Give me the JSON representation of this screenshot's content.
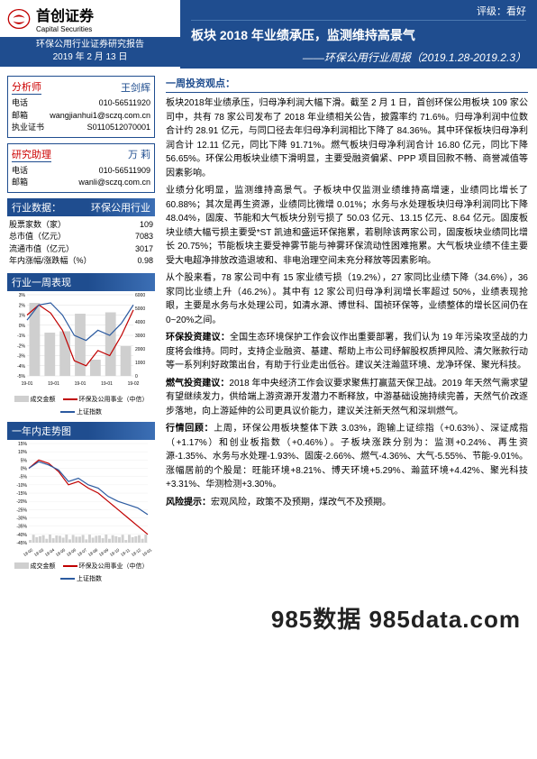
{
  "header": {
    "logo_cn": "首创证券",
    "logo_en": "Capital Securities",
    "report_type": "环保公用行业证券研究报告",
    "date": "2019 年 2 月 13 日",
    "rating_label": "评级：",
    "rating_value": "看好",
    "title": "板块 2018 年业绩承压，监测维持高景气",
    "subtitle": "——环保公用行业周报（2019.1.28-2019.2.3）"
  },
  "colors": {
    "header_bg": "#1f4d8f",
    "red": "#c00000",
    "blue": "#1f4d8f",
    "line_blue": "#2b5aa0",
    "line_red": "#c00000",
    "bar_gray": "#cfcfcf"
  },
  "sidebar": {
    "analyst": {
      "title": "分析师",
      "name": "王剑辉",
      "rows": [
        {
          "k": "电话",
          "v": "010-56511920"
        },
        {
          "k": "邮箱",
          "v": "wangjianhui1@sczq.com.cn"
        },
        {
          "k": "执业证书",
          "v": "S0110512070001"
        }
      ]
    },
    "assistant": {
      "title": "研究助理",
      "name": "万 莉",
      "rows": [
        {
          "k": "电话",
          "v": "010-56511909"
        },
        {
          "k": "邮箱",
          "v": "wanli@sczq.com.cn"
        }
      ]
    },
    "industry_data": {
      "title_left": "行业数据：",
      "title_right": "环保公用行业",
      "rows": [
        {
          "k": "股票家数（家）",
          "v": "109"
        },
        {
          "k": "总市值（亿元）",
          "v": "7083"
        },
        {
          "k": "流通市值（亿元）",
          "v": "3017"
        },
        {
          "k": "年内涨幅/涨跌幅（%）",
          "v": "0.98"
        }
      ]
    },
    "chart1": {
      "title": "行业一周表现",
      "x_labels": [
        "19-01",
        "19-01",
        "19-01",
        "19-01",
        "19-02"
      ],
      "left_ticks": [
        "3%",
        "2%",
        "1%",
        "0%",
        "-1%",
        "-2%",
        "-3%",
        "-4%",
        "-5%"
      ],
      "right_ticks": [
        "6000",
        "5000",
        "4000",
        "3000",
        "2000",
        "1000",
        "0"
      ],
      "bar_values": [
        5400,
        3200,
        3300,
        4600,
        1200,
        4700,
        2200
      ],
      "line_red": [
        1.0,
        2.0,
        1.2,
        -0.5,
        -3.5,
        -4.0,
        -2.5,
        -3.0,
        -1.0,
        1.5
      ],
      "line_blue": [
        0.5,
        2.0,
        2.2,
        1.0,
        -1.0,
        -1.5,
        -0.5,
        -1.0,
        0.2,
        2.0
      ],
      "ylim_left": [
        -5,
        3
      ],
      "ylim_right": [
        0,
        6000
      ],
      "legend": [
        {
          "label": "成交金额",
          "type": "bar",
          "color": "#cfcfcf"
        },
        {
          "label": "环保及公用事业（中信）",
          "type": "line",
          "color": "#c00000"
        },
        {
          "label": "上证指数",
          "type": "line",
          "color": "#2b5aa0"
        }
      ]
    },
    "chart2": {
      "title": "一年内走势图",
      "x_labels": [
        "18-02",
        "18-03",
        "18-04",
        "18-05",
        "18-06",
        "18-07",
        "18-08",
        "18-09",
        "18-10",
        "18-11",
        "18-12",
        "19-01"
      ],
      "left_ticks": [
        "15%",
        "10%",
        "5%",
        "0%",
        "-5%",
        "-10%",
        "-15%",
        "-20%",
        "-25%",
        "-30%",
        "-35%",
        "-40%",
        "-45%"
      ],
      "line_red": [
        0,
        5,
        3,
        -2,
        -10,
        -8,
        -12,
        -15,
        -20,
        -25,
        -30,
        -35,
        -40
      ],
      "line_blue": [
        0,
        4,
        2,
        -1,
        -8,
        -6,
        -10,
        -12,
        -17,
        -20,
        -22,
        -24,
        -28
      ],
      "ylim_left": [
        -45,
        15
      ],
      "legend": [
        {
          "label": "成交金额",
          "type": "bar",
          "color": "#cfcfcf"
        },
        {
          "label": "环保及公用事业（中信）",
          "type": "line",
          "color": "#c00000"
        },
        {
          "label": "上证指数",
          "type": "line",
          "color": "#2b5aa0"
        }
      ]
    }
  },
  "main": {
    "section_title": "一周投资观点：",
    "paras": [
      {
        "lead": "",
        "text": "板块2018年业绩承压，归母净利润大幅下滑。截至 2 月 1 日，首创环保公用板块 109 家公司中，共有 78 家公司发布了 2018 年业绩相关公告，披露率约 71.6%。归母净利润中位数合计约 28.91 亿元，与同口径去年归母净利润相比下降了 84.36%。其中环保板块归母净利润合计 12.11 亿元，同比下降 91.71%。燃气板块归母净利润合计 16.80 亿元，同比下降 56.65%。环保公用板块业绩下滑明显，主要受融资偏紧、PPP 项目回款不畅、商誉减值等因素影响。"
      },
      {
        "lead": "",
        "text": "业绩分化明显，监测维持高景气。子板块中仅监测业绩维持高增速，业绩同比增长了 60.88%；其次是再生资源，业绩同比微增 0.01%；水务与水处理板块归母净利润同比下降 48.04%，固废、节能和大气板块分别亏损了 50.03 亿元、13.15 亿元、8.64 亿元。固废板块业绩大幅亏损主要受*ST 凯迪和盛运环保拖累，若剔除该两家公司，固废板块业绩同比增长 20.75%；节能板块主要受神雾节能与神雾环保流动性困难拖累。大气板块业绩不佳主要受大电超净排放改造退坡和、非电治理空间未充分释放等因素影响。"
      },
      {
        "lead": "",
        "text": "从个股来看，78 家公司中有 15 家业绩亏损（19.2%），27 家同比业绩下降（34.6%），36 家同比业绩上升（46.2%）。其中有 12 家公司归母净利润增长率超过 50%，业绩表现抢眼，主要是水务与水处理公司，如清水源、博世科、国祯环保等，业绩整体的增长区间仍在 0~20%之间。"
      },
      {
        "lead": "环保投资建议：",
        "text": "全国生态环境保护工作会议作出重要部署，我们认为 19 年污染攻坚战的力度将会维持。同时，支持企业融资、基建、帮助上市公司纾解股权质押风险、清欠账款行动等一系列利好政策出台，有助于行业走出低谷。建议关注瀚蓝环境、龙净环保、聚光科技。"
      },
      {
        "lead": "燃气投资建议：",
        "text": "2018 年中央经济工作会议要求聚焦打赢蓝天保卫战。2019 年天然气需求望有望继续发力，供给端上游资源开发潜力不断释放，中游基础设施持续完善，天然气价改逐步落地，向上游延伸的公司更具议价能力，建议关注新天然气和深圳燃气。"
      },
      {
        "lead": "行情回顾：",
        "text": "上周，环保公用板块整体下跌 3.03%，跑输上证综指（+0.63%）、深证成指（+1.17%）和创业板指数（+0.46%）。子板块涨跌分别为：监测+0.24%、再生资源-1.35%、水务与水处理-1.93%、固废-2.66%、燃气-4.36%、大气-5.55%、节能-9.01%。涨幅居前的个股是：旺能环境+8.21%、博天环境+5.29%、瀚蓝环境+4.42%、聚光科技+3.31%、华测检测+3.30%。"
      },
      {
        "lead": "风险提示：",
        "text": "宏观风险，政策不及预期，煤改气不及预期。"
      }
    ]
  },
  "footer": "985数据 985data.com"
}
